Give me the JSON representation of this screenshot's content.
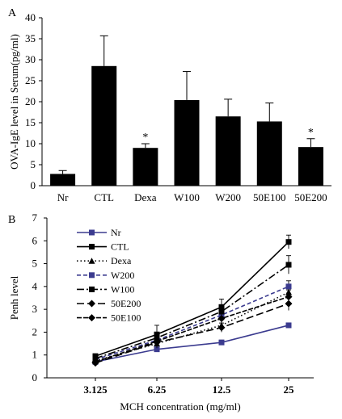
{
  "chart_data": [
    {
      "panel": "A",
      "type": "bar",
      "ylabel": "OVA-IgE level in Serum(pg/ml)",
      "xlabel": "",
      "ylim": [
        0,
        40
      ],
      "yticks": [
        "0",
        "5",
        "10",
        "15",
        "20",
        "25",
        "30",
        "35",
        "40"
      ],
      "categories": [
        "Nr",
        "CTL",
        "Dexa",
        "W100",
        "W200",
        "50E100",
        "50E200"
      ],
      "values": [
        2.8,
        28.5,
        9.0,
        20.4,
        16.5,
        15.3,
        9.2
      ],
      "errors": [
        0.8,
        7.2,
        1.0,
        6.8,
        4.1,
        4.4,
        2.0
      ],
      "significance": [
        "",
        "",
        "*",
        "",
        "",
        "",
        "*"
      ],
      "bar_color": "#000000"
    },
    {
      "panel": "B",
      "type": "line",
      "ylabel": "Penh level",
      "xlabel": "MCH concentration (mg/ml)",
      "ylim": [
        0,
        7
      ],
      "yticks": [
        "0",
        "1",
        "2",
        "3",
        "4",
        "5",
        "6",
        "7"
      ],
      "categories": [
        "3.125",
        "6.25",
        "12.5",
        "25"
      ],
      "series": [
        {
          "name": "Nr",
          "values": [
            0.7,
            1.25,
            1.55,
            2.3
          ],
          "errors": [
            0.05,
            0.08,
            0.1,
            0.1
          ],
          "marker": "square",
          "color": "#3b3b8f",
          "dash": ""
        },
        {
          "name": "CTL",
          "values": [
            0.95,
            1.9,
            3.1,
            5.95
          ],
          "errors": [
            0.1,
            0.4,
            0.35,
            0.3
          ],
          "marker": "square",
          "color": "#000000",
          "dash": ""
        },
        {
          "name": "Dexa",
          "values": [
            0.75,
            1.5,
            2.3,
            3.75
          ],
          "errors": [
            0.05,
            0.2,
            0.25,
            0.3
          ],
          "marker": "triangle",
          "color": "#000000",
          "dash": "1.5,3"
        },
        {
          "name": "W200",
          "values": [
            0.8,
            1.65,
            2.75,
            4.0
          ],
          "errors": [
            0.05,
            0.2,
            0.25,
            0.25
          ],
          "marker": "square",
          "color": "#3b3b8f",
          "dash": "5,3"
        },
        {
          "name": "W100",
          "values": [
            0.85,
            1.75,
            2.9,
            4.95
          ],
          "errors": [
            0.05,
            0.25,
            0.3,
            0.4
          ],
          "marker": "square",
          "color": "#000000",
          "dash": "9,3,2,3"
        },
        {
          "name": "50E200",
          "values": [
            0.65,
            1.55,
            2.2,
            3.25
          ],
          "errors": [
            0.05,
            0.15,
            0.2,
            0.3
          ],
          "marker": "diamond",
          "color": "#000000",
          "dash": "9,4"
        },
        {
          "name": "50E100",
          "values": [
            0.7,
            1.6,
            2.6,
            3.55
          ],
          "errors": [
            0.05,
            0.2,
            0.25,
            0.3
          ],
          "marker": "diamond",
          "color": "#000000",
          "dash": "6,2,6,2"
        }
      ]
    }
  ]
}
